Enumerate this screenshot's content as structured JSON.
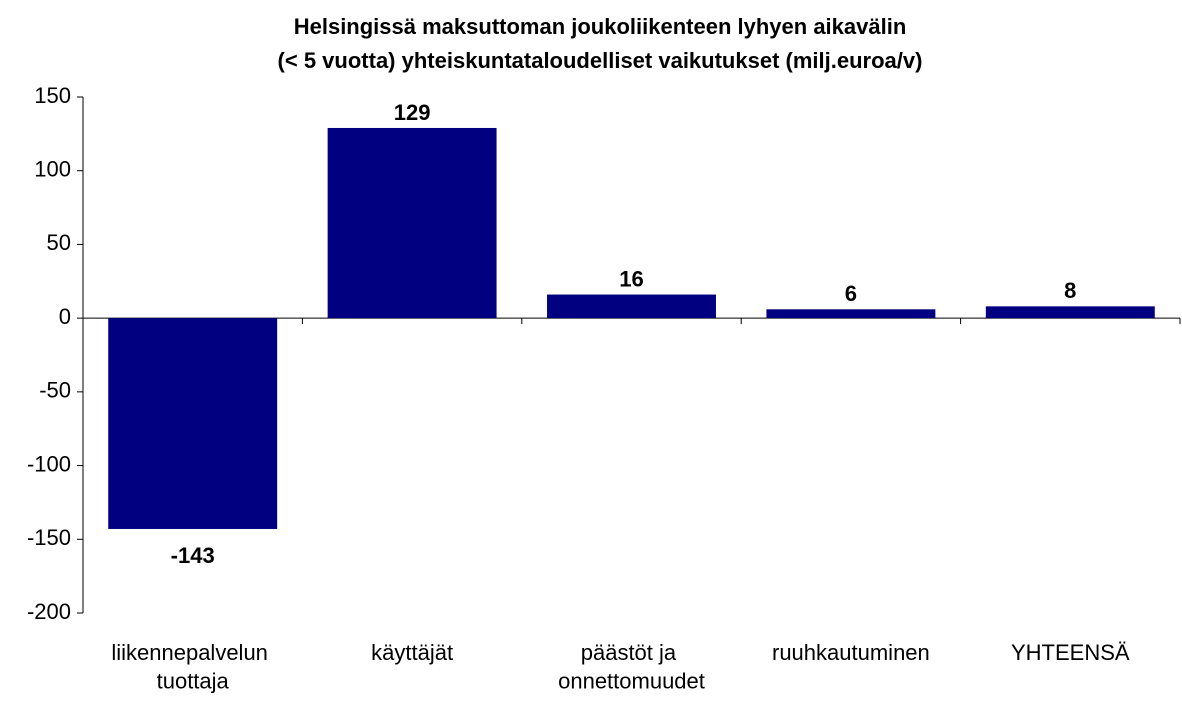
{
  "chart_data": {
    "type": "bar",
    "title": [
      "Helsingissä maksuttoman joukoliikenteen lyhyen aikavälin",
      "(< 5 vuotta) yhteiskuntataloudelliset vaikutukset  (milj.euroa/v)"
    ],
    "categories": [
      "liikennepalvelun tuottaja",
      "käyttäjät",
      "päästöt ja onnettomuudet",
      "ruuhkautuminen",
      "YHTEENSÄ"
    ],
    "values": [
      -143,
      129,
      16,
      6,
      8
    ],
    "color": "#000080",
    "ylim": [
      -200,
      150
    ],
    "yticks": [
      -200,
      -150,
      -100,
      -50,
      0,
      50,
      100,
      150
    ],
    "grid": false
  }
}
